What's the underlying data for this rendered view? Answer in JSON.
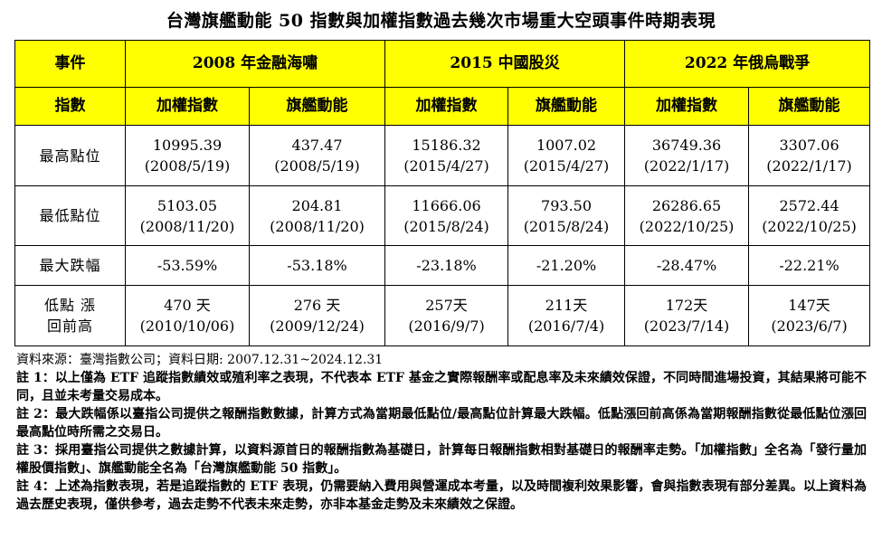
{
  "title": "台灣旗艦動能 50 指數與加權指數過去幾次市場重大空頭事件時期表現",
  "header": {
    "event_label": "事件",
    "index_label": "指數",
    "events": [
      "2008 年金融海嘯",
      "2015 中國股災",
      "2022 年俄烏戰爭"
    ],
    "sub": [
      "加權指數",
      "旗艦動能",
      "加權指數",
      "旗艦動能",
      "加權指數",
      "旗艦動能"
    ]
  },
  "rows": {
    "high": {
      "label": "最高點位",
      "cells": [
        [
          "10995.39",
          "(2008/5/19)"
        ],
        [
          "437.47",
          "(2008/5/19)"
        ],
        [
          "15186.32",
          "(2015/4/27)"
        ],
        [
          "1007.02",
          "(2015/4/27)"
        ],
        [
          "36749.36",
          "(2022/1/17)"
        ],
        [
          "3307.06",
          "(2022/1/17)"
        ]
      ]
    },
    "low": {
      "label": "最低點位",
      "cells": [
        [
          "5103.05",
          "(2008/11/20)"
        ],
        [
          "204.81",
          "(2008/11/20)"
        ],
        [
          "11666.06",
          "(2015/8/24)"
        ],
        [
          "793.50",
          "(2015/8/24)"
        ],
        [
          "26286.65",
          "(2022/10/25)"
        ],
        [
          "2572.44",
          "(2022/10/25)"
        ]
      ]
    },
    "drop": {
      "label": "最大跌幅",
      "cells": [
        "-53.59%",
        "-53.18%",
        "-23.18%",
        "-21.20%",
        "-28.47%",
        "-22.21%"
      ]
    },
    "recover": {
      "label_line1": "低點 漲",
      "label_line2": "回前高",
      "cells": [
        [
          "470 天",
          "(2010/10/06)"
        ],
        [
          "276 天",
          "(2009/12/24)"
        ],
        [
          "257天",
          "(2016/9/7)"
        ],
        [
          "211天",
          "(2016/7/4)"
        ],
        [
          "172天",
          "(2023/7/14)"
        ],
        [
          "147天",
          "(2023/6/7)"
        ]
      ]
    }
  },
  "notes": {
    "source": "資料來源：臺灣指數公司；資料日期: 2007.12.31~2024.12.31",
    "items": [
      "註 1：以上僅為 ETF 追蹤指數績效或殖利率之表現，不代表本 ETF 基金之實際報酬率或配息率及未來績效保證，不同時間進場投資，其結果將可能不同，且並未考量交易成本。",
      "註 2：最大跌幅係以臺指公司提供之報酬指數數據，計算方式為當期最低點位/最高點位計算最大跌幅。低點漲回前高係為當期報酬指數從最低點位漲回最高點位時所需之交易日。",
      "註 3：採用臺指公司提供之數據計算，以資料源首日的報酬指數為基礎日，計算每日報酬指數相對基礎日的報酬率走勢。「加權指數」全名為「發行量加權股價指數」、旗艦動能全名為「台灣旗艦動能 50 指數」。",
      "註 4：上述為指數表現，若是追蹤指數的 ETF 表現，仍需要納入費用與營運成本考量，以及時間複利效果影響，會與指數表現有部分差異。以上資料為過去歷史表現，僅供參考，過去走勢不代表未來走勢，亦非本基金走勢及未來績效之保證。"
    ]
  }
}
